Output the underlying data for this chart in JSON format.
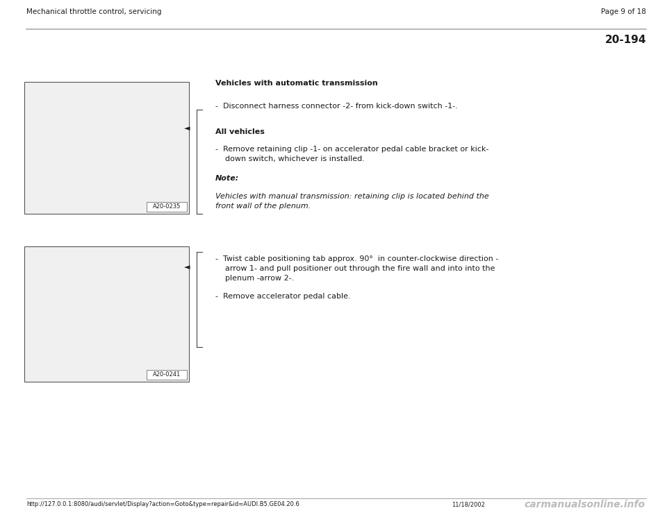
{
  "bg_color": "#ffffff",
  "header_left": "Mechanical throttle control, servicing",
  "header_right": "Page 9 of 18",
  "section_number": "20-194",
  "footer_url": "http://127.0.0.1:8080/audi/servlet/Display?action=Goto&type=repair&id=AUDI.B5.GE04.20.6",
  "footer_date": "11/18/2002",
  "footer_watermark": "carmanualsonline.info",
  "text_color": "#1a1a1a",
  "gray_line_color": "#aaaaaa",
  "font_size_header": 7.5,
  "font_size_body": 8.0,
  "font_size_heading_bold": 8.0,
  "font_size_section": 11,
  "font_size_footer": 6.0,
  "font_size_watermark": 10,
  "block1_heading": "Vehicles with automatic transmission",
  "block1_bullet1": "-  Disconnect harness connector -2- from kick-down switch -1-.",
  "block1_subheading": "All vehicles",
  "block1_bullet2a": "-  Remove retaining clip -1- on accelerator pedal cable bracket or kick-",
  "block1_bullet2b": "    down switch, whichever is installed.",
  "block1_note_label": "Note:",
  "block1_note1": "Vehicles with manual transmission: retaining clip is located behind the",
  "block1_note2": "front wall of the plenum.",
  "block2_bullet1a": "-  Twist cable positioning tab approx. 90°  in counter-clockwise direction -",
  "block2_bullet1b": "    arrow 1- and pull positioner out through the fire wall and into into the",
  "block2_bullet1c": "    plenum -arrow 2-.",
  "block2_bullet2": "-  Remove accelerator pedal cable.",
  "img1_label": "A20-0235",
  "img2_label": "A20-0241"
}
